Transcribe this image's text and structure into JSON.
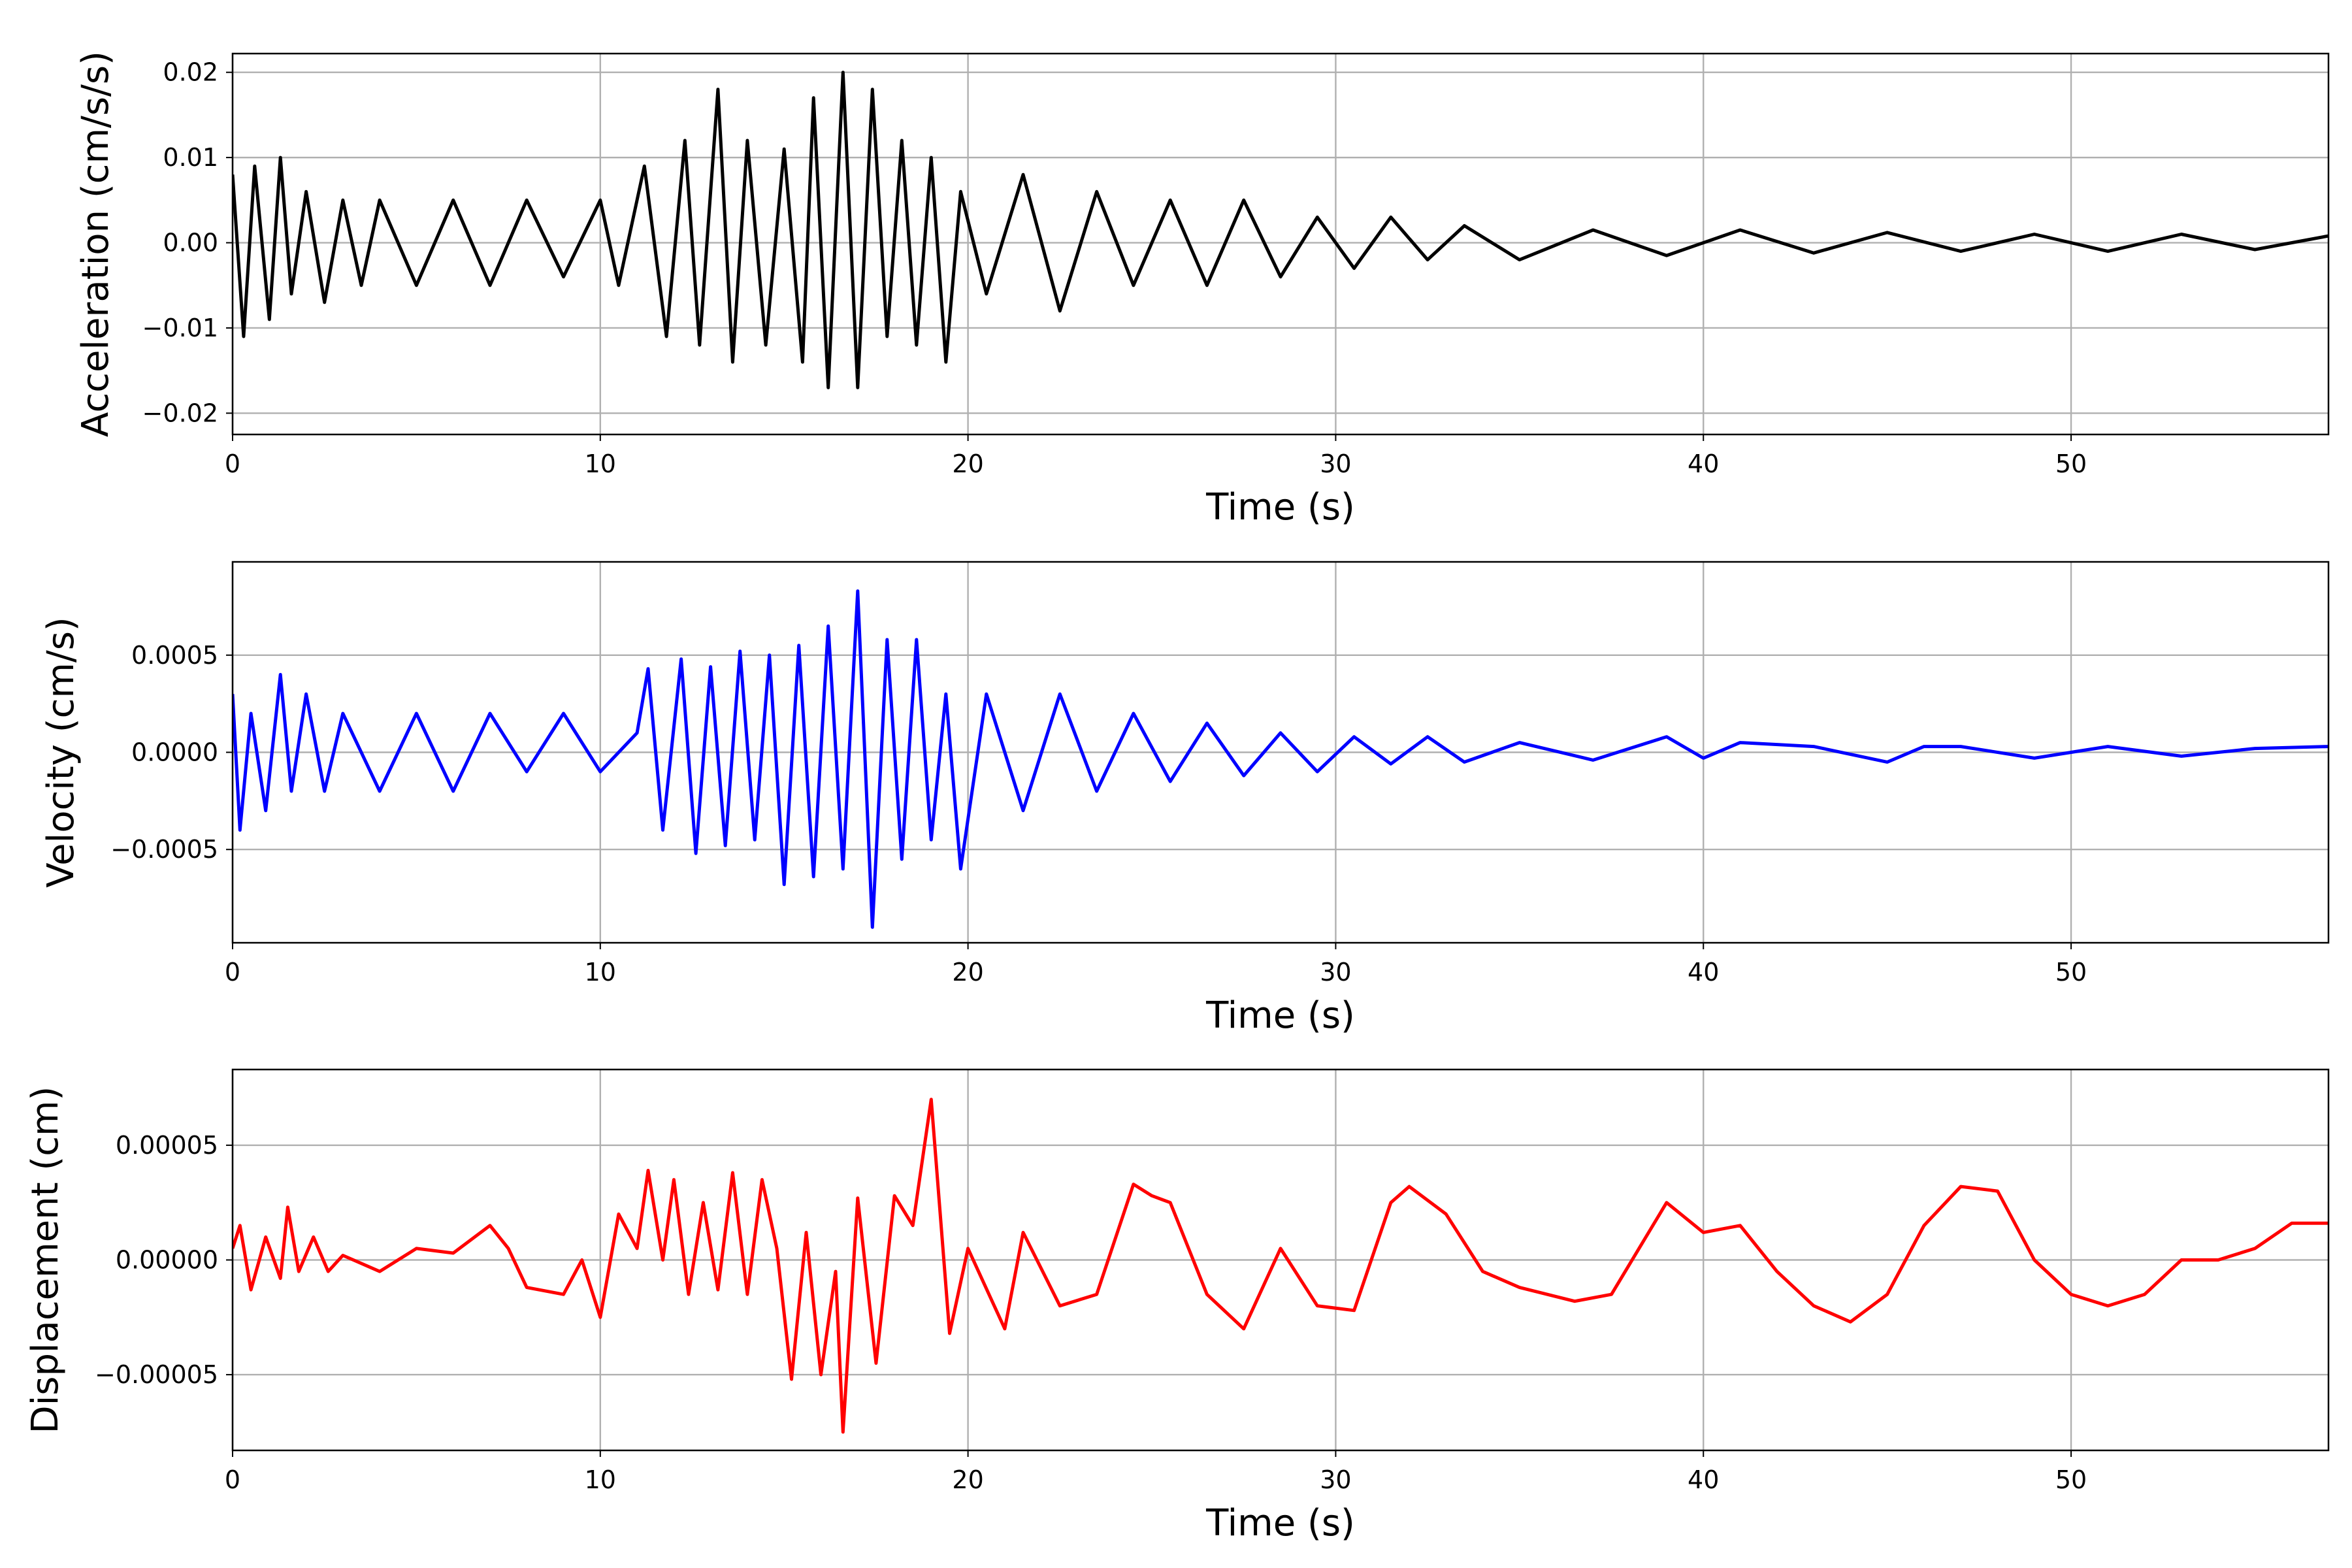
{
  "chart_data": [
    {
      "type": "line",
      "title": "",
      "xlabel": "Time (s)",
      "ylabel": "Acceleration (cm/s/s)",
      "xlim": [
        0,
        57
      ],
      "ylim": [
        -0.0225,
        0.0222
      ],
      "xticks": [
        0,
        10,
        20,
        30,
        40,
        50
      ],
      "xtick_labels": [
        "0",
        "10",
        "20",
        "30",
        "40",
        "50"
      ],
      "yticks": [
        -0.02,
        -0.01,
        0.0,
        0.01,
        0.02
      ],
      "ytick_labels": [
        "−0.02",
        "−0.01",
        "0.00",
        "0.01",
        "0.02"
      ],
      "grid": true,
      "color": "#000000",
      "series": [
        {
          "x": [
            0,
            0.3,
            0.6,
            1.0,
            1.3,
            1.6,
            2.0,
            2.5,
            3.0,
            3.5,
            4.0,
            5.0,
            6.0,
            7.0,
            8.0,
            9.0,
            10.0,
            10.5,
            11.2,
            11.8,
            12.3,
            12.7,
            13.2,
            13.6,
            14.0,
            14.5,
            15.0,
            15.5,
            15.8,
            16.2,
            16.6,
            17.0,
            17.4,
            17.8,
            18.2,
            18.6,
            19.0,
            19.4,
            19.8,
            20.5,
            21.5,
            22.5,
            23.5,
            24.5,
            25.5,
            26.5,
            27.5,
            28.5,
            29.5,
            30.5,
            31.5,
            32.5,
            33.5,
            35.0,
            37.0,
            39.0,
            41.0,
            43.0,
            45.0,
            47.0,
            49.0,
            51.0,
            53.0,
            55.0,
            57.0
          ],
          "y": [
            0.008,
            -0.011,
            0.009,
            -0.009,
            0.01,
            -0.006,
            0.006,
            -0.007,
            0.005,
            -0.005,
            0.005,
            -0.005,
            0.005,
            -0.005,
            0.005,
            -0.004,
            0.005,
            -0.005,
            0.009,
            -0.011,
            0.012,
            -0.012,
            0.018,
            -0.014,
            0.012,
            -0.012,
            0.011,
            -0.014,
            0.017,
            -0.017,
            0.02,
            -0.017,
            0.018,
            -0.011,
            0.012,
            -0.012,
            0.01,
            -0.014,
            0.006,
            -0.006,
            0.008,
            -0.008,
            0.006,
            -0.005,
            0.005,
            -0.005,
            0.005,
            -0.004,
            0.003,
            -0.003,
            0.003,
            -0.002,
            0.002,
            -0.002,
            0.0015,
            -0.0015,
            0.0015,
            -0.0012,
            0.0012,
            -0.001,
            0.001,
            -0.001,
            0.001,
            -0.0008,
            0.0008
          ]
        }
      ]
    },
    {
      "type": "line",
      "title": "",
      "xlabel": "Time (s)",
      "ylabel": "Velocity (cm/s)",
      "xlim": [
        0,
        57
      ],
      "ylim": [
        -0.00098,
        0.00098
      ],
      "xticks": [
        0,
        10,
        20,
        30,
        40,
        50
      ],
      "xtick_labels": [
        "0",
        "10",
        "20",
        "30",
        "40",
        "50"
      ],
      "yticks": [
        -0.0005,
        0.0,
        0.0005
      ],
      "ytick_labels": [
        "−0.0005",
        "0.0000",
        "0.0005"
      ],
      "grid": true,
      "color": "#0000ff",
      "series": [
        {
          "x": [
            0,
            0.2,
            0.5,
            0.9,
            1.3,
            1.6,
            2.0,
            2.5,
            3.0,
            4.0,
            5.0,
            6.0,
            7.0,
            8.0,
            9.0,
            10.0,
            11.0,
            11.3,
            11.7,
            12.2,
            12.6,
            13.0,
            13.4,
            13.8,
            14.2,
            14.6,
            15.0,
            15.4,
            15.8,
            16.2,
            16.6,
            17.0,
            17.4,
            17.8,
            18.2,
            18.6,
            19.0,
            19.4,
            19.8,
            20.5,
            21.5,
            22.5,
            23.5,
            24.5,
            25.5,
            26.5,
            27.5,
            28.5,
            29.5,
            30.5,
            31.5,
            32.5,
            33.5,
            35.0,
            37.0,
            39.0,
            40.0,
            41.0,
            43.0,
            45.0,
            46.0,
            47.0,
            49.0,
            51.0,
            53.0,
            55.0,
            57.0
          ],
          "y": [
            0.0003,
            -0.0004,
            0.0002,
            -0.0003,
            0.0004,
            -0.0002,
            0.0003,
            -0.0002,
            0.0002,
            -0.0002,
            0.0002,
            -0.0002,
            0.0002,
            -0.0001,
            0.0002,
            -0.0001,
            0.0001,
            0.00043,
            -0.0004,
            0.00048,
            -0.00052,
            0.00044,
            -0.00048,
            0.00052,
            -0.00045,
            0.0005,
            -0.00068,
            0.00055,
            -0.00064,
            0.00065,
            -0.0006,
            0.00083,
            -0.0009,
            0.00058,
            -0.00055,
            0.00058,
            -0.00045,
            0.0003,
            -0.0006,
            0.0003,
            -0.0003,
            0.0003,
            -0.0002,
            0.0002,
            -0.00015,
            0.00015,
            -0.00012,
            0.0001,
            -0.0001,
            8e-05,
            -6e-05,
            8e-05,
            -5e-05,
            5e-05,
            -4e-05,
            8e-05,
            -3e-05,
            5e-05,
            3e-05,
            -5e-05,
            3e-05,
            3e-05,
            -3e-05,
            3e-05,
            -2e-05,
            2e-05,
            3e-05
          ]
        }
      ]
    },
    {
      "type": "line",
      "title": "",
      "xlabel": "Time (s)",
      "ylabel": "Displacement (cm)",
      "xlim": [
        0,
        57
      ],
      "ylim": [
        -8.3e-05,
        8.3e-05
      ],
      "xticks": [
        0,
        10,
        20,
        30,
        40,
        50
      ],
      "xtick_labels": [
        "0",
        "10",
        "20",
        "30",
        "40",
        "50"
      ],
      "yticks": [
        -5e-05,
        0.0,
        5e-05
      ],
      "ytick_labels": [
        "−0.00005",
        "0.00000",
        "0.00005"
      ],
      "grid": true,
      "color": "#ff0000",
      "series": [
        {
          "x": [
            0,
            0.2,
            0.5,
            0.9,
            1.3,
            1.5,
            1.8,
            2.2,
            2.6,
            3.0,
            4.0,
            5.0,
            6.0,
            7.0,
            7.5,
            8.0,
            9.0,
            9.5,
            10.0,
            10.5,
            11.0,
            11.3,
            11.7,
            12.0,
            12.4,
            12.8,
            13.2,
            13.6,
            14.0,
            14.4,
            14.8,
            15.2,
            15.6,
            16.0,
            16.4,
            16.6,
            17.0,
            17.5,
            18.0,
            18.5,
            19.0,
            19.5,
            20.0,
            21.0,
            21.5,
            22.5,
            23.5,
            24.5,
            25.0,
            25.5,
            26.5,
            27.5,
            28.5,
            29.5,
            30.5,
            31.5,
            32.0,
            33.0,
            34.0,
            35.0,
            36.5,
            37.5,
            39.0,
            40.0,
            41.0,
            42.0,
            43.0,
            44.0,
            45.0,
            46.0,
            47.0,
            48.0,
            49.0,
            50.0,
            51.0,
            52.0,
            53.0,
            54.0,
            55.0,
            56.0,
            57.0
          ],
          "y": [
            5e-06,
            1.5e-05,
            -1.3e-05,
            1e-05,
            -8e-06,
            2.3e-05,
            -5e-06,
            1e-05,
            -5e-06,
            2e-06,
            -5e-06,
            5e-06,
            3e-06,
            1.5e-05,
            5e-06,
            -1.2e-05,
            -1.5e-05,
            0.0,
            -2.5e-05,
            2e-05,
            5e-06,
            3.9e-05,
            0.0,
            3.5e-05,
            -1.5e-05,
            2.5e-05,
            -1.3e-05,
            3.8e-05,
            -1.5e-05,
            3.5e-05,
            5e-06,
            -5.2e-05,
            1.2e-05,
            -5e-05,
            -5e-06,
            -7.5e-05,
            2.7e-05,
            -4.5e-05,
            2.8e-05,
            1.5e-05,
            7e-05,
            -3.2e-05,
            5e-06,
            -3e-05,
            1.2e-05,
            -2e-05,
            -1.5e-05,
            3.3e-05,
            2.8e-05,
            2.5e-05,
            -1.5e-05,
            -3e-05,
            5e-06,
            -2e-05,
            -2.2e-05,
            2.5e-05,
            3.2e-05,
            2e-05,
            -5e-06,
            -1.2e-05,
            -1.8e-05,
            -1.5e-05,
            2.5e-05,
            1.2e-05,
            1.5e-05,
            -5e-06,
            -2e-05,
            -2.7e-05,
            -1.5e-05,
            1.5e-05,
            3.2e-05,
            3e-05,
            0.0,
            -1.5e-05,
            -2e-05,
            -1.5e-05,
            0.0,
            0.0,
            5e-06,
            1.6e-05,
            1.6e-05
          ]
        }
      ]
    }
  ]
}
